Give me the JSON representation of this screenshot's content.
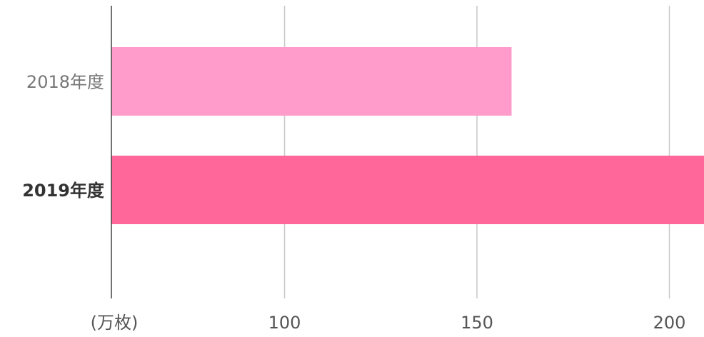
{
  "chart_data": {
    "type": "bar",
    "orientation": "horizontal",
    "categories": [
      "2018年度",
      "2019年度"
    ],
    "values": [
      159,
      210
    ],
    "colors": [
      "#ff9ccb",
      "#ff6699"
    ],
    "highlighted_category": "2019年度",
    "x_ticks": [
      100,
      150,
      200
    ],
    "xlim": [
      55,
      209
    ],
    "unit_label": "(万枚)",
    "grid": true
  }
}
